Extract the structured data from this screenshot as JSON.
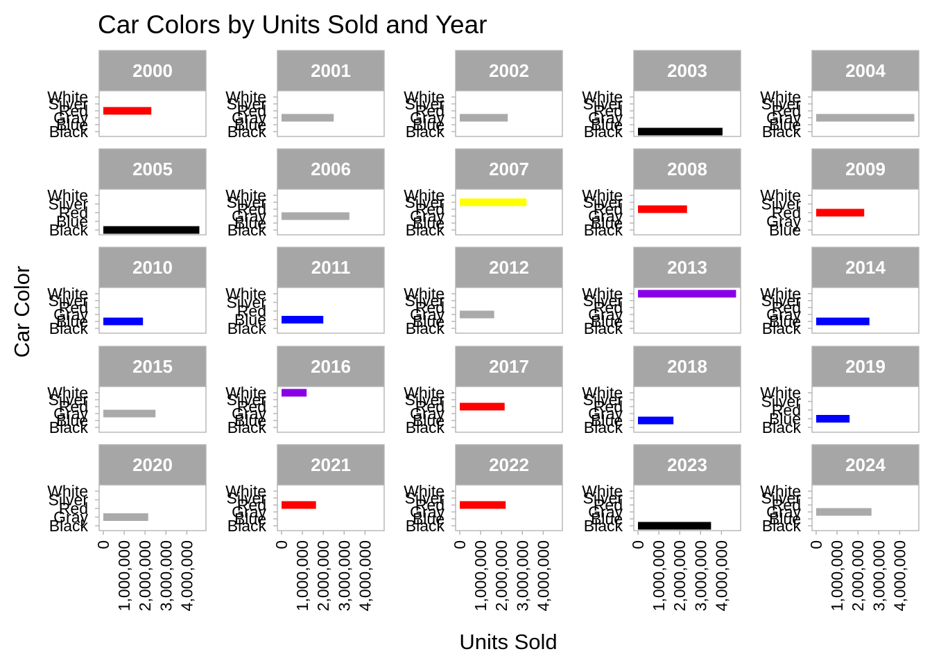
{
  "chart_data": {
    "type": "bar",
    "orientation": "horizontal",
    "title": "Car Colors by Units Sold and Year",
    "xlabel": "Units Sold",
    "ylabel": "Car Color",
    "xlim": [
      0,
      4000000
    ],
    "x_ticks": [
      "0",
      "1,000,000",
      "2,000,000",
      "3,000,000",
      "4,000,000"
    ],
    "x_tick_values": [
      0,
      1000000,
      2000000,
      3000000,
      4000000
    ],
    "colors": {
      "Black": "#000000",
      "Blue": "#0000FF",
      "Gray": "#AAAAAA",
      "Red": "#FF0000",
      "Silver": "#FFFF00",
      "White": "#8A00E6"
    },
    "panels": [
      {
        "year": "2000",
        "levels": [
          "Black",
          "Blue",
          "Gray",
          "Red",
          "Silver",
          "White"
        ],
        "bar": {
          "color": "Red",
          "value": 2300000
        }
      },
      {
        "year": "2001",
        "levels": [
          "Black",
          "Blue",
          "Gray",
          "Red",
          "Silver",
          "White"
        ],
        "bar": {
          "color": "Gray",
          "value": 2500000
        }
      },
      {
        "year": "2002",
        "levels": [
          "Black",
          "Blue",
          "Gray",
          "Red",
          "Silver",
          "White"
        ],
        "bar": {
          "color": "Gray",
          "value": 2300000
        }
      },
      {
        "year": "2003",
        "levels": [
          "Black",
          "Blue",
          "Gray",
          "Red",
          "Silver",
          "White"
        ],
        "bar": {
          "color": "Black",
          "value": 4050000
        }
      },
      {
        "year": "2004",
        "levels": [
          "Black",
          "Blue",
          "Gray",
          "Red",
          "Silver",
          "White"
        ],
        "bar": {
          "color": "Gray",
          "value": 4700000
        }
      },
      {
        "year": "2005",
        "levels": [
          "Black",
          "Blue",
          "Red",
          "Silver",
          "White"
        ],
        "bar": {
          "color": "Black",
          "value": 4600000
        }
      },
      {
        "year": "2006",
        "levels": [
          "Black",
          "Blue",
          "Gray",
          "Red",
          "Silver",
          "White"
        ],
        "bar": {
          "color": "Gray",
          "value": 3250000
        }
      },
      {
        "year": "2007",
        "levels": [
          "Black",
          "Blue",
          "Gray",
          "Red",
          "Silver",
          "White"
        ],
        "bar": {
          "color": "Silver",
          "value": 3200000
        }
      },
      {
        "year": "2008",
        "levels": [
          "Black",
          "Blue",
          "Gray",
          "Red",
          "Silver",
          "White"
        ],
        "bar": {
          "color": "Red",
          "value": 2350000
        }
      },
      {
        "year": "2009",
        "levels": [
          "Blue",
          "Gray",
          "Red",
          "Silver",
          "White"
        ],
        "bar": {
          "color": "Red",
          "value": 2300000
        }
      },
      {
        "year": "2010",
        "levels": [
          "Black",
          "Blue",
          "Gray",
          "Red",
          "Silver",
          "White"
        ],
        "bar": {
          "color": "Blue",
          "value": 1900000
        }
      },
      {
        "year": "2011",
        "levels": [
          "Black",
          "Blue",
          "Red",
          "Silver",
          "White"
        ],
        "bar": {
          "color": "Blue",
          "value": 2000000
        }
      },
      {
        "year": "2012",
        "levels": [
          "Black",
          "Blue",
          "Gray",
          "Red",
          "Silver",
          "White"
        ],
        "bar": {
          "color": "Gray",
          "value": 1650000
        }
      },
      {
        "year": "2013",
        "levels": [
          "Black",
          "Blue",
          "Gray",
          "Red",
          "Silver",
          "White"
        ],
        "bar": {
          "color": "White",
          "value": 4700000
        }
      },
      {
        "year": "2014",
        "levels": [
          "Black",
          "Blue",
          "Gray",
          "Red",
          "Silver",
          "White"
        ],
        "bar": {
          "color": "Blue",
          "value": 2550000
        }
      },
      {
        "year": "2015",
        "levels": [
          "Black",
          "Blue",
          "Gray",
          "Red",
          "Silver",
          "White"
        ],
        "bar": {
          "color": "Gray",
          "value": 2500000
        }
      },
      {
        "year": "2016",
        "levels": [
          "Black",
          "Blue",
          "Gray",
          "Red",
          "Silver",
          "White"
        ],
        "bar": {
          "color": "White",
          "value": 1200000
        }
      },
      {
        "year": "2017",
        "levels": [
          "Black",
          "Blue",
          "Gray",
          "Red",
          "Silver",
          "White"
        ],
        "bar": {
          "color": "Red",
          "value": 2150000
        }
      },
      {
        "year": "2018",
        "levels": [
          "Black",
          "Blue",
          "Gray",
          "Red",
          "Silver",
          "White"
        ],
        "bar": {
          "color": "Blue",
          "value": 1700000
        }
      },
      {
        "year": "2019",
        "levels": [
          "Black",
          "Blue",
          "Red",
          "Silver",
          "White"
        ],
        "bar": {
          "color": "Blue",
          "value": 1600000
        }
      },
      {
        "year": "2020",
        "levels": [
          "Black",
          "Gray",
          "Red",
          "Silver",
          "White"
        ],
        "bar": {
          "color": "Gray",
          "value": 2150000
        }
      },
      {
        "year": "2021",
        "levels": [
          "Black",
          "Blue",
          "Gray",
          "Red",
          "Silver",
          "White"
        ],
        "bar": {
          "color": "Red",
          "value": 1650000
        }
      },
      {
        "year": "2022",
        "levels": [
          "Black",
          "Blue",
          "Gray",
          "Red",
          "Silver",
          "White"
        ],
        "bar": {
          "color": "Red",
          "value": 2200000
        }
      },
      {
        "year": "2023",
        "levels": [
          "Black",
          "Blue",
          "Gray",
          "Red",
          "Silver",
          "White"
        ],
        "bar": {
          "color": "Black",
          "value": 3500000
        }
      },
      {
        "year": "2024",
        "levels": [
          "Black",
          "Blue",
          "Gray",
          "Red",
          "Silver",
          "White"
        ],
        "bar": {
          "color": "Gray",
          "value": 2650000
        }
      }
    ]
  }
}
